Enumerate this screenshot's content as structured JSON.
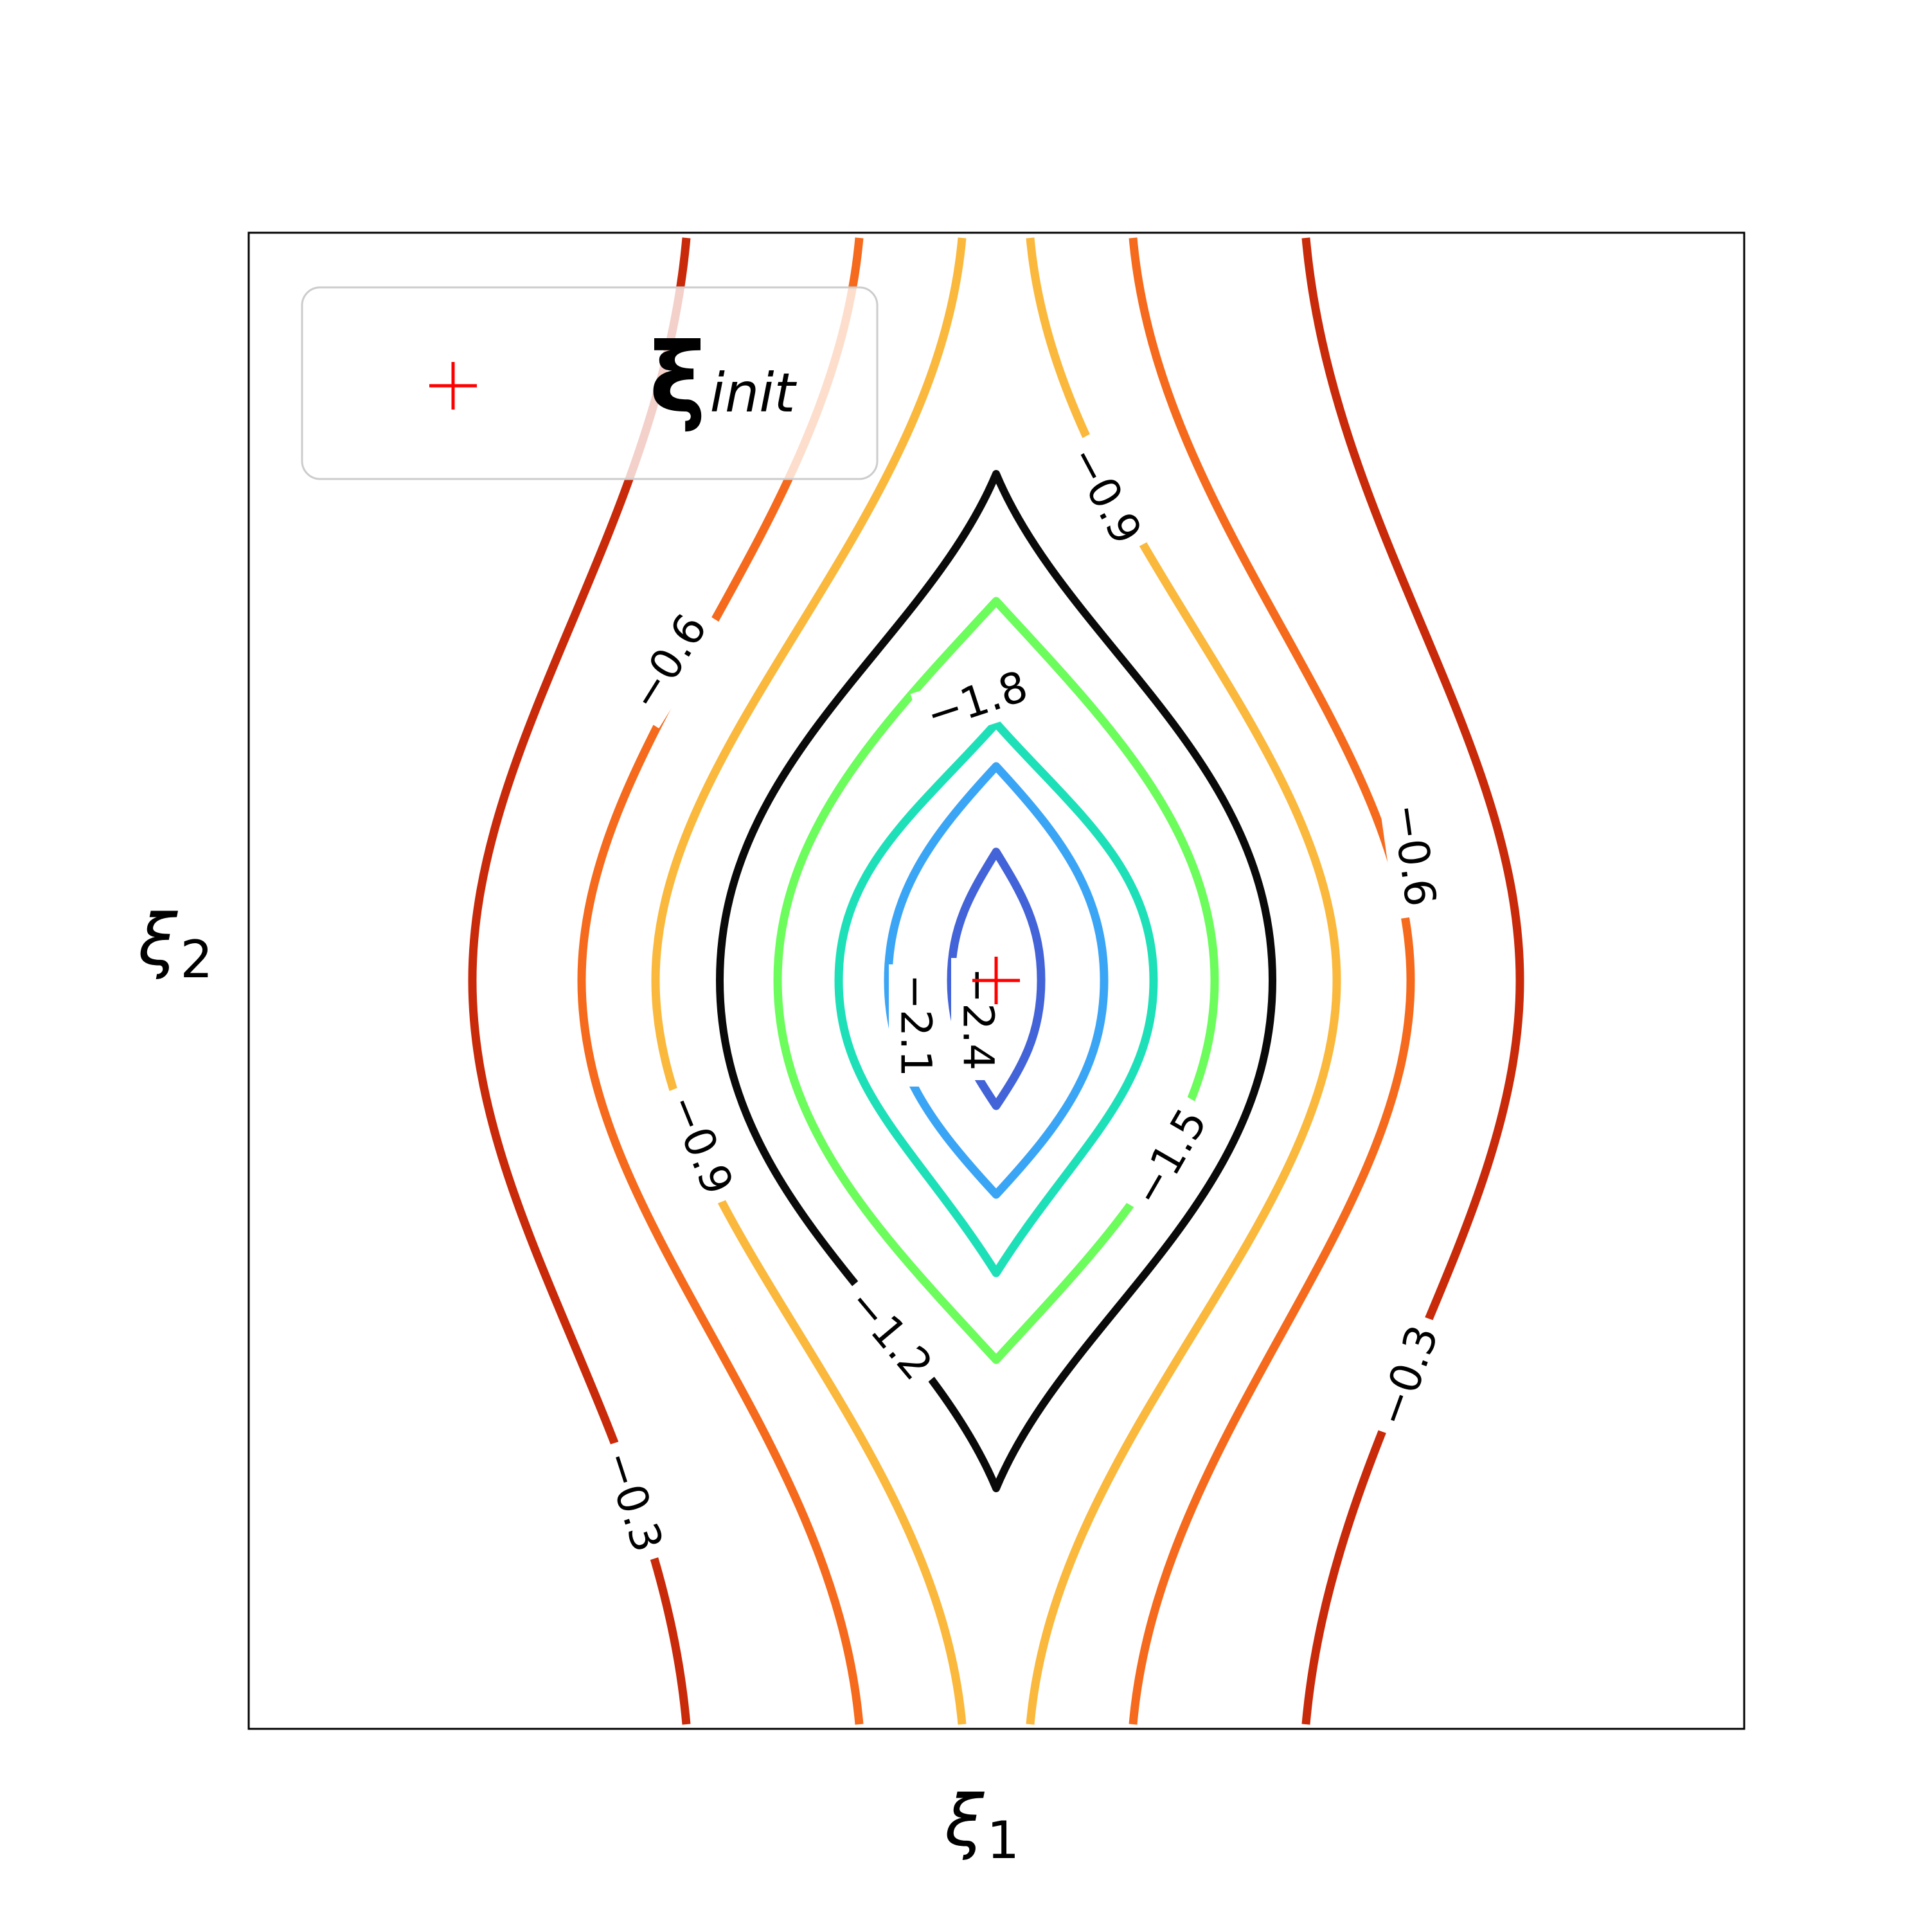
{
  "chart_data": {
    "type": "contour",
    "xlabel": "ξ",
    "xlabel_sub": "1",
    "ylabel": "ξ",
    "ylabel_sub": "2",
    "grid": false,
    "ticks": false,
    "legend": {
      "placement": "top-left",
      "entries": [
        {
          "marker": "+",
          "color": "#ff0000",
          "label": "ξ",
          "label_sub": "init"
        }
      ]
    },
    "marker_point": {
      "name": "ξinit",
      "x": 0,
      "y": 0,
      "color": "#ff0000"
    },
    "levels": [
      {
        "value": -2.4,
        "label": "−2.4",
        "color": "#4363d8"
      },
      {
        "value": -2.1,
        "label": "−2.1",
        "color": "#3ba5f5"
      },
      {
        "value": -1.8,
        "label": "−1.8",
        "color": "#1ee0b8"
      },
      {
        "value": -1.5,
        "label": "−1.5",
        "color": "#6cfc5c"
      },
      {
        "value": -1.2,
        "label": "−1.2",
        "color": "#0a0a0a"
      },
      {
        "value": -0.9,
        "label": "−0.9",
        "color": "#fab83c"
      },
      {
        "value": -0.6,
        "label": "−0.6",
        "color": "#f56a1c"
      },
      {
        "value": -0.3,
        "label": "−0.3",
        "color": "#c92a0a"
      }
    ]
  }
}
